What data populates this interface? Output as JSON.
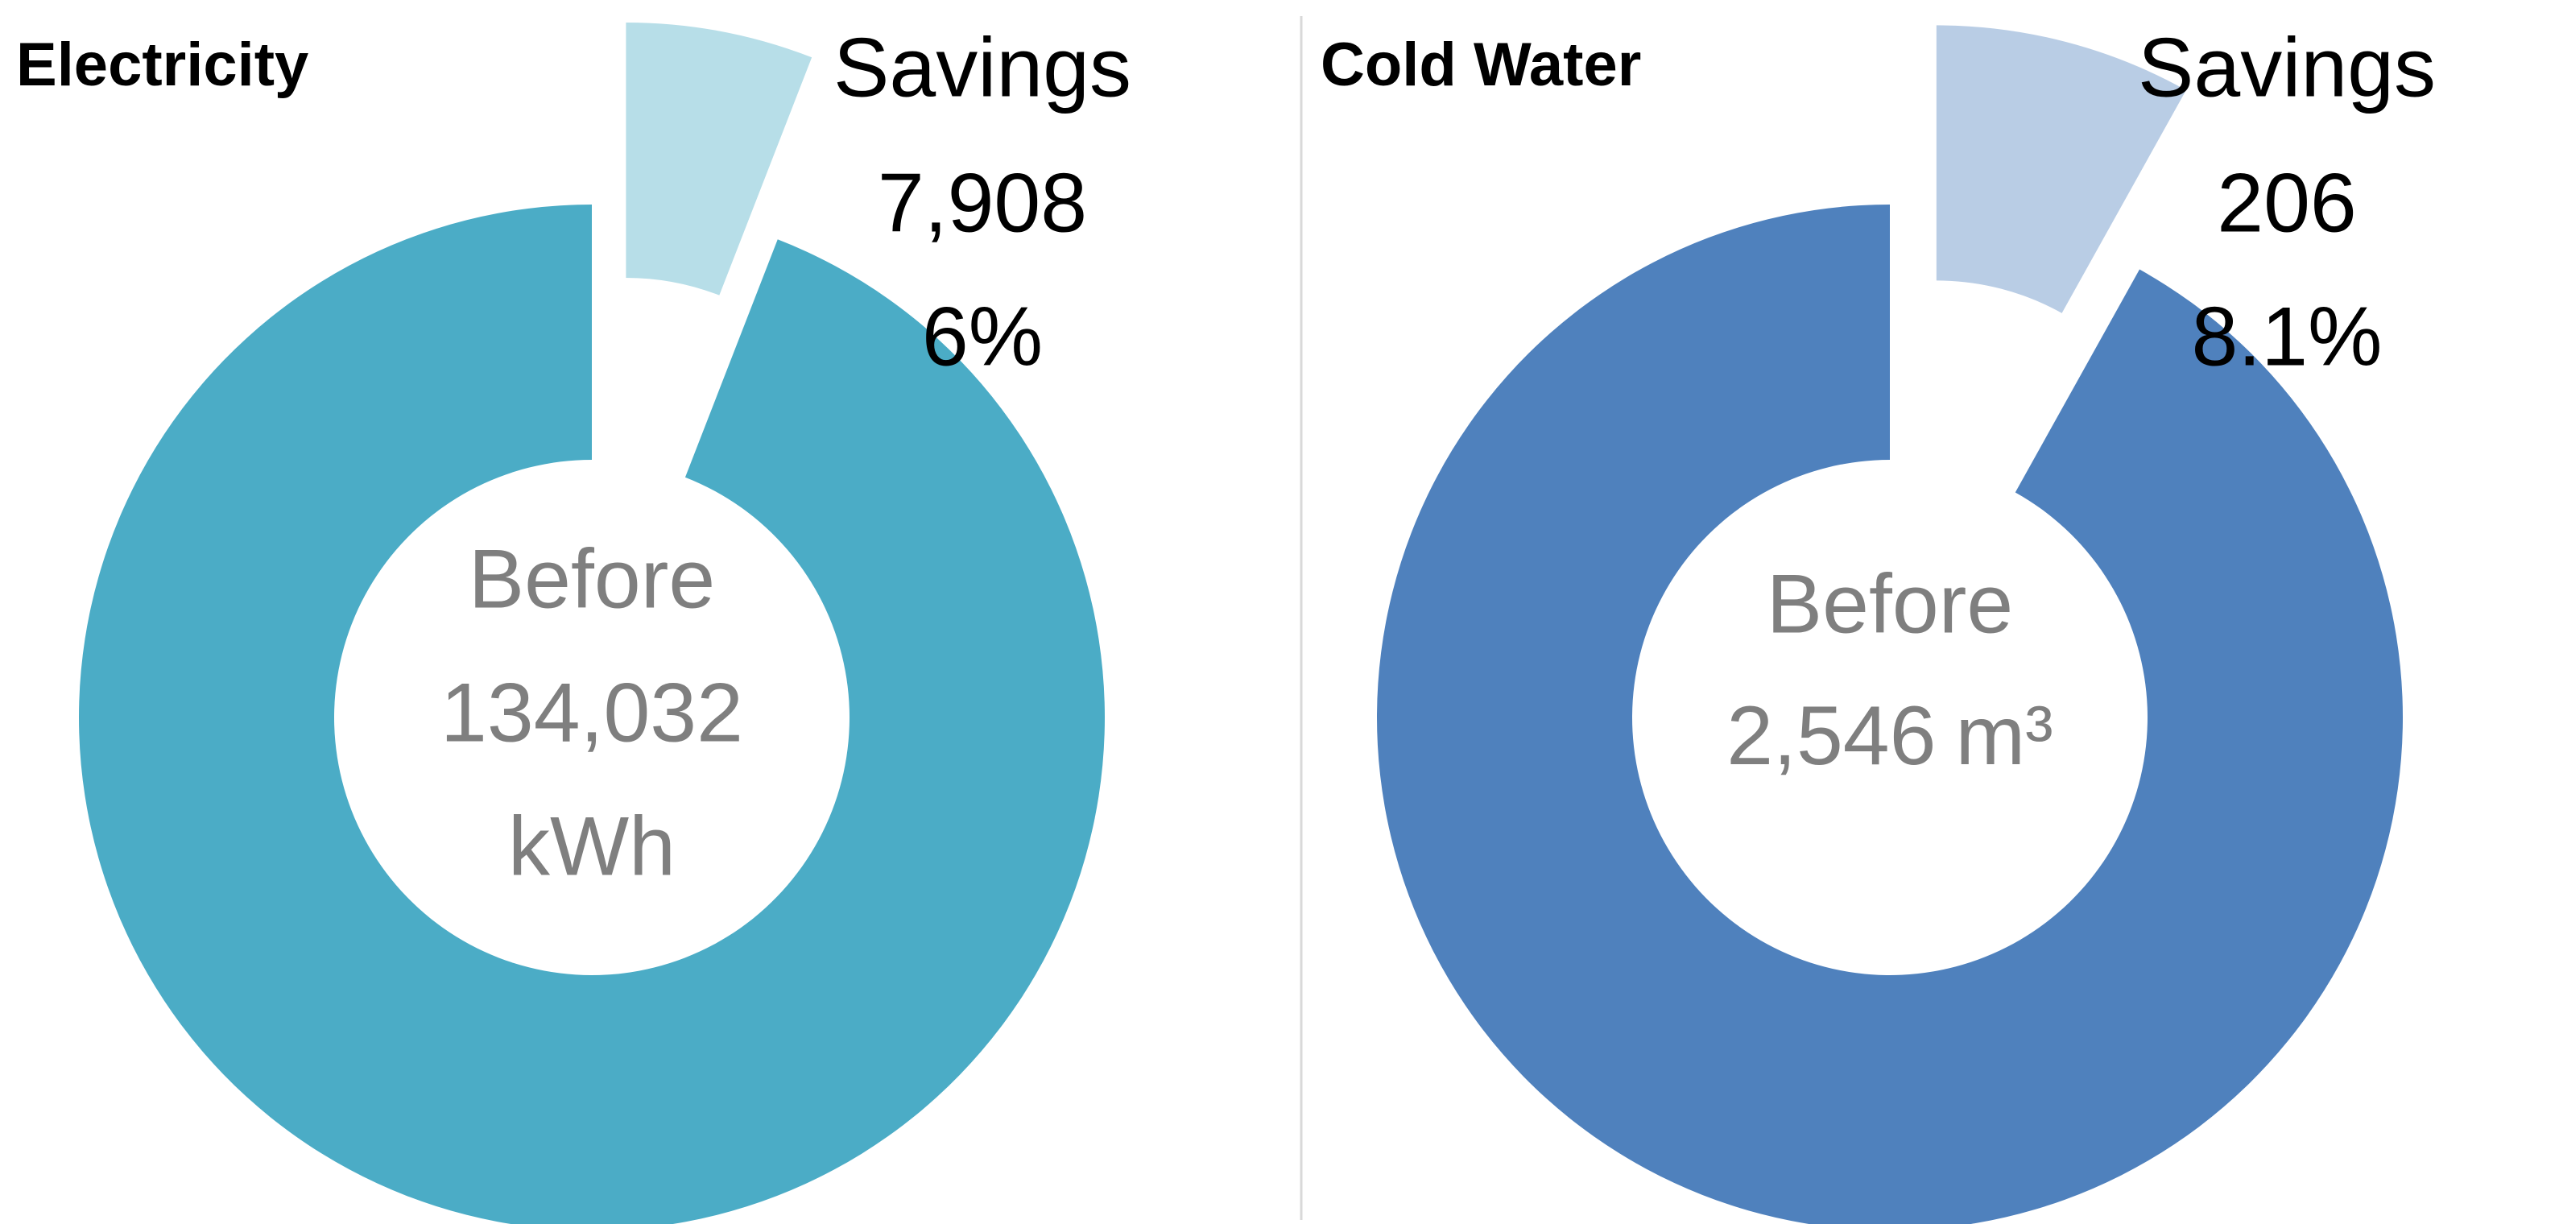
{
  "chart_data": [
    {
      "type": "pie",
      "title": "Electricity",
      "hole": true,
      "categories": [
        "Savings",
        "Before"
      ],
      "values": [
        7908,
        134032
      ],
      "value_labels": [
        "7,908",
        "134,032"
      ],
      "colors": [
        "#b7dee8",
        "#4bacc6"
      ],
      "percent": {
        "value": 6,
        "label": "6%"
      },
      "unit": "kWh",
      "unit_inline": false
    },
    {
      "type": "pie",
      "title": "Cold Water",
      "hole": true,
      "categories": [
        "Savings",
        "Before"
      ],
      "values": [
        206,
        2546
      ],
      "value_labels": [
        "206",
        "2,546"
      ],
      "colors": [
        "#b9cde5",
        "#4f81bd"
      ],
      "percent": {
        "value": 8.1,
        "label": "8.1%"
      },
      "unit": "m³",
      "unit_inline": true
    }
  ]
}
